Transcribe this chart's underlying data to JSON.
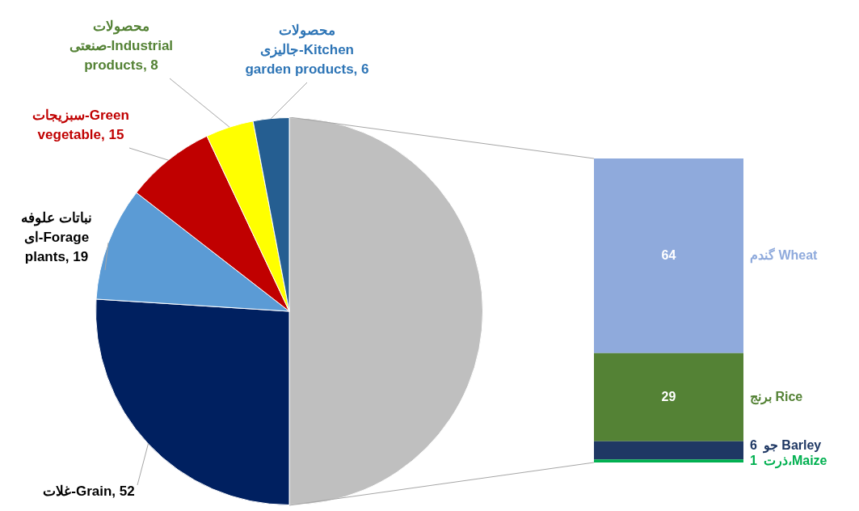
{
  "chart_data": [
    {
      "type": "pie",
      "categories": [
        null,
        "غلات-Grain, 52",
        "نباتات علوفه ای-Forage plants, 19",
        "سبزیجات-Green vegetable, 15",
        "محصولات صنعتی-Industrial products, 8",
        "محصولات جالیزی-Kitchen garden products, 6"
      ],
      "values": [
        100,
        52,
        19,
        15,
        8,
        6
      ],
      "colors": [
        "#bfbfbf",
        "#002060",
        "#5b9bd5",
        "#c00000",
        "#ffff00",
        "#255e91"
      ],
      "legend": false
    },
    {
      "type": "bar",
      "stacked": true,
      "categories": [
        null
      ],
      "series": [
        {
          "name": "ذرت،Maize",
          "color": "#00b050",
          "values": [
            1
          ]
        },
        {
          "name": "جو Barley",
          "color": "#1f3864",
          "values": [
            6
          ]
        },
        {
          "name": "برنج Rice",
          "color": "#548235",
          "values": [
            29
          ]
        },
        {
          "name": "گندم Wheat",
          "color": "#8faadc",
          "values": [
            64
          ]
        }
      ],
      "data_labels": true,
      "legend": false
    }
  ]
}
